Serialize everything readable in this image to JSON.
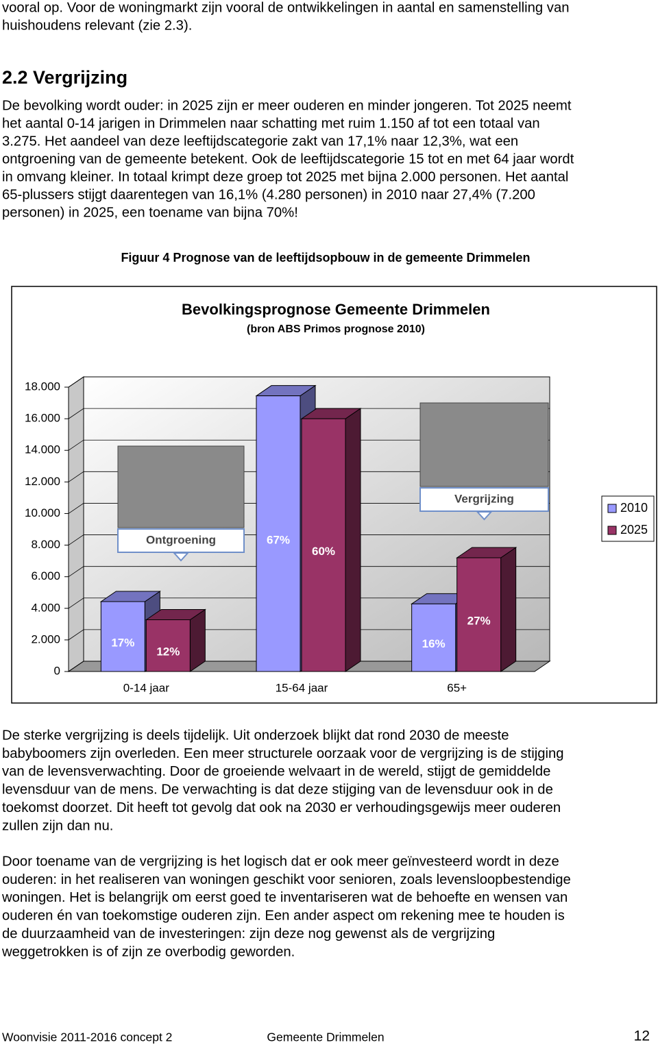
{
  "intro": {
    "lines": [
      "vooral op. Voor de woningmarkt zijn vooral de ontwikkelingen in aantal en samenstelling van",
      "huishoudens relevant (zie 2.3)."
    ]
  },
  "section": {
    "heading": "2.2  Vergrijzing",
    "lines": [
      "De bevolking wordt ouder: in 2025 zijn er meer ouderen en minder jongeren. Tot 2025 neemt",
      "het aantal 0-14 jarigen in Drimmelen naar schatting met ruim 1.150 af tot een totaal van",
      "3.275. Het aandeel van deze leeftijdscategorie zakt van 17,1% naar 12,3%, wat een",
      "ontgroening van de gemeente betekent. Ook de leeftijdscategorie 15 tot en met 64 jaar wordt",
      "in omvang kleiner. In totaal krimpt deze groep tot 2025 met bijna 2.000 personen. Het aantal",
      "65-plussers stijgt daarentegen van 16,1% (4.280 personen) in 2010 naar 27,4% (7.200",
      "personen) in 2025, een toename van bijna 70%!"
    ]
  },
  "figure": {
    "caption": "Figuur 4 Prognose van de leeftijdsopbouw  in de gemeente Drimmelen"
  },
  "chart_data": {
    "type": "bar",
    "three_d": true,
    "title": "Bevolkingsprognose Gemeente Drimmelen",
    "subtitle": "(bron ABS Primos prognose 2010)",
    "categories": [
      "0-14 jaar",
      "15-64 jaar",
      "65+"
    ],
    "series": [
      {
        "name": "2010",
        "color": "#9999ff",
        "values": [
          4425,
          17450,
          4280
        ],
        "share_labels": [
          "17%",
          "67%",
          "16%"
        ]
      },
      {
        "name": "2025",
        "color": "#993366",
        "values": [
          3275,
          16000,
          7200
        ],
        "share_labels": [
          "12%",
          "60%",
          "27%"
        ]
      }
    ],
    "ylim": [
      0,
      18000
    ],
    "yticks": [
      0,
      {
        "value": 2000,
        "label": "2.000"
      },
      {
        "value": 4000,
        "label": "4.000"
      },
      {
        "value": 6000,
        "label": "6.000"
      },
      {
        "value": 8000,
        "label": "8.000"
      },
      {
        "value": 10000,
        "label": "10.000"
      },
      {
        "value": 12000,
        "label": "12.000"
      },
      {
        "value": 14000,
        "label": "14.000"
      },
      {
        "value": 16000,
        "label": "16.000"
      },
      {
        "value": 18000,
        "label": "18.000"
      }
    ],
    "grid": true,
    "legend": "right",
    "annotations": [
      "Ontgroening",
      "Vergrijzing"
    ]
  },
  "paragraphs": [
    [
      "De sterke vergrijzing is deels tijdelijk. Uit onderzoek blijkt dat rond 2030 de meeste",
      "babyboomers zijn overleden. Een meer structurele oorzaak voor de vergrijzing is de stijging",
      "van de levensverwachting. Door de groeiende welvaart in de wereld, stijgt de gemiddelde",
      "levensduur van de mens. De verwachting is dat deze stijging van de levensduur ook in de",
      "toekomst doorzet. Dit heeft tot gevolg dat ook na 2030 er verhoudingsgewijs meer ouderen",
      "zullen zijn dan nu."
    ],
    [
      "Door toename van de vergrijzing is het logisch dat er ook meer geïnvesteerd wordt in deze",
      "ouderen: in het realiseren van woningen geschikt voor senioren, zoals levensloopbestendige",
      "woningen. Het is belangrijk om eerst goed te inventariseren wat de behoefte en wensen van",
      "ouderen én van toekomstige ouderen zijn. Een ander aspect om rekening mee te houden is",
      "de duurzaamheid van de investeringen: zijn deze nog gewenst als de vergrijzing",
      "weggetrokken is of zijn ze overbodig geworden."
    ]
  ],
  "footer": {
    "left": "Woonvisie 2011-2016 concept 2",
    "center": "Gemeente Drimmelen",
    "page": "12"
  }
}
